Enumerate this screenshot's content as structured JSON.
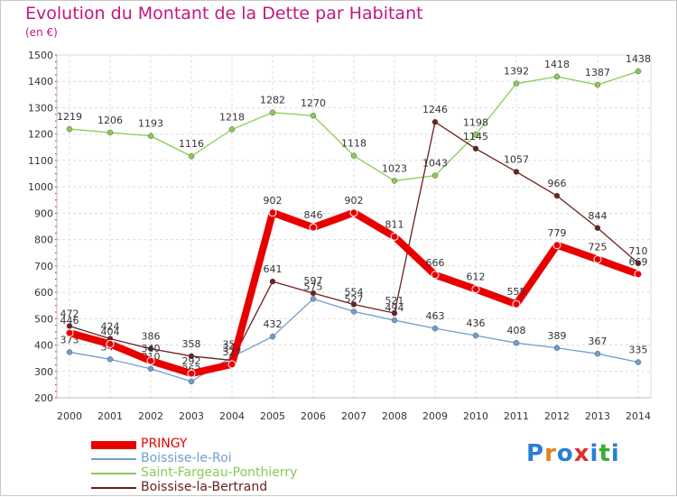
{
  "chart_data": {
    "type": "line",
    "title": "Evolution du Montant de la Dette par Habitant",
    "subtitle": "(en €)",
    "x": [
      "2000",
      "2001",
      "2002",
      "2003",
      "2004",
      "2005",
      "2006",
      "2007",
      "2008",
      "2009",
      "2010",
      "2011",
      "2012",
      "2013",
      "2014"
    ],
    "ylim": [
      200,
      1500
    ],
    "yticks": [
      200,
      300,
      400,
      500,
      600,
      700,
      800,
      900,
      1000,
      1100,
      1200,
      1300,
      1400,
      1500
    ],
    "grid": true,
    "series": [
      {
        "name": "PRINGY",
        "color": "#e80000",
        "values": [
          446,
          404,
          340,
          292,
          327,
          902,
          846,
          902,
          811,
          666,
          612,
          555,
          779,
          725,
          669
        ]
      },
      {
        "name": "Boissise-le-Roi",
        "color": "#6e9fd0",
        "values": [
          373,
          346,
          310,
          262,
          355,
          432,
          575,
          527,
          494,
          463,
          436,
          408,
          389,
          367,
          335
        ]
      },
      {
        "name": "Saint-Fargeau-Ponthierry",
        "color": "#88cc55",
        "values": [
          1219,
          1206,
          1193,
          1116,
          1218,
          1282,
          1270,
          1118,
          1023,
          1043,
          1198,
          1392,
          1418,
          1387,
          1438
        ]
      },
      {
        "name": "Boissise-la-Bertrand",
        "color": "#6b2020",
        "values": [
          472,
          424,
          386,
          358,
          342,
          641,
          597,
          554,
          521,
          1246,
          1145,
          1057,
          966,
          844,
          710
        ]
      }
    ]
  },
  "legend": [
    {
      "label": "PRINGY",
      "color": "#e80000"
    },
    {
      "label": "Boissise-le-Roi",
      "color": "#6e9fd0"
    },
    {
      "label": "Saint-Fargeau-Ponthierry",
      "color": "#88cc55"
    },
    {
      "label": "Boissise-la-Bertrand",
      "color": "#6b2020"
    }
  ],
  "brand": {
    "text": "Proxiti",
    "colors": [
      "#2a7fd4",
      "#e8801a",
      "#2a7fd4",
      "#e0302a",
      "#2a7fd4",
      "#3aaa35",
      "#2a7fd4"
    ]
  }
}
